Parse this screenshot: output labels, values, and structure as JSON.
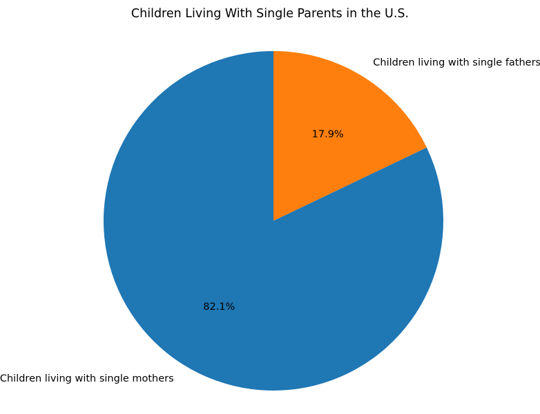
{
  "chart_data": {
    "type": "pie",
    "title": "Children Living With Single Parents in the U.S.",
    "slices": [
      {
        "label": "Children living with single fathers",
        "value": 17.9,
        "pct_label": "17.9%",
        "color": "#ff7f0e"
      },
      {
        "label": "Children living with single mothers",
        "value": 82.1,
        "pct_label": "82.1%",
        "color": "#1f77b4"
      }
    ],
    "start_angle_deg": 90,
    "direction": "clockwise",
    "legend": "none",
    "background_color": "#ffffff",
    "text_color": "#000000"
  }
}
